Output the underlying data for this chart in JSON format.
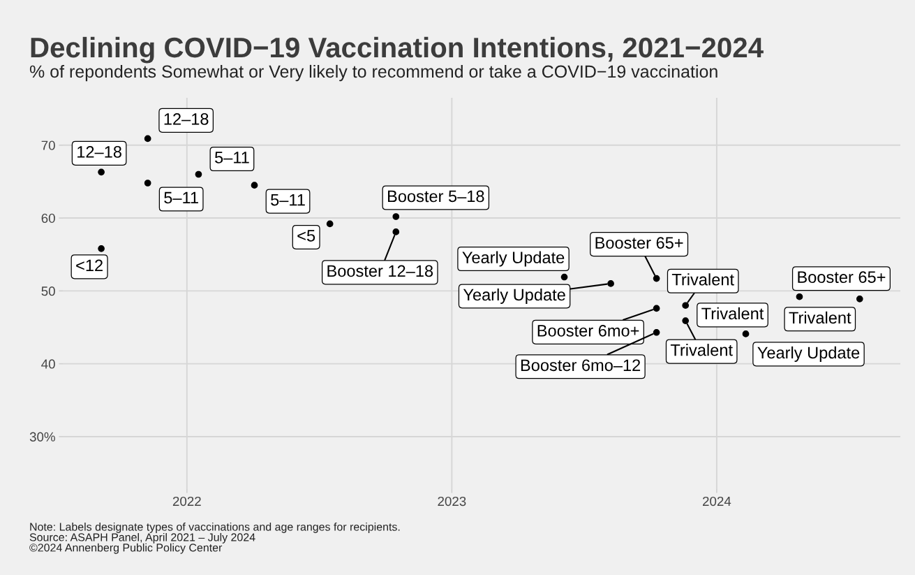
{
  "chart_data": {
    "type": "scatter",
    "title": "Declining COVID−19 Vaccination Intentions, 2021−2024",
    "subtitle": "% of repondents Somewhat or Very likely to recommend or take a COVID−19 vaccination",
    "series": [
      {
        "color": "#000000",
        "x": [
          "2021-09-05",
          "2021-09-05",
          "2021-11-08",
          "2021-11-08",
          "2022-01-17",
          "2022-04-04",
          "2022-07-17",
          "2022-10-16",
          "2022-10-16",
          "2023-06-05",
          "2023-08-08",
          "2023-10-10",
          "2023-10-10",
          "2023-10-10",
          "2023-11-19",
          "2023-11-19",
          "2024-02-10",
          "2024-04-24",
          "2024-07-16"
        ],
        "values": [
          66.3,
          55.8,
          70.9,
          64.8,
          66.0,
          64.5,
          59.2,
          60.2,
          58.1,
          51.9,
          51.0,
          51.7,
          47.6,
          44.3,
          48.0,
          45.9,
          44.1,
          49.2,
          48.9
        ]
      }
    ],
    "marker": "circle",
    "xlim": [
      "2021-07-14",
      "2024-09-10"
    ],
    "xticks": [
      {
        "value": "2022",
        "label": "2022"
      },
      {
        "value": "2023",
        "label": "2023"
      },
      {
        "value": "2024",
        "label": "2024"
      }
    ],
    "ylim": [
      22.8,
      76.5
    ],
    "yticks": [
      {
        "value": 30,
        "label": "30%"
      },
      40,
      50,
      60,
      70
    ],
    "grid": true,
    "annotations": [
      {
        "text": "12–18",
        "x": "2021-09-05",
        "y": 66.3
      },
      {
        "text": "<12",
        "x": "2021-09-05",
        "y": 55.8
      },
      {
        "text": "12–18",
        "x": "2021-11-08",
        "y": 70.9
      },
      {
        "text": "5–11",
        "x": "2021-11-08",
        "y": 64.8
      },
      {
        "text": "5–11",
        "x": "2022-01-17",
        "y": 66.0
      },
      {
        "text": "5–11",
        "x": "2022-04-04",
        "y": 64.5
      },
      {
        "text": "<5",
        "x": "2022-07-17",
        "y": 59.2
      },
      {
        "text": "Booster 5–18",
        "x": "2022-10-16",
        "y": 60.2
      },
      {
        "text": "Booster 12–18",
        "x": "2022-10-16",
        "y": 58.1
      },
      {
        "text": "Yearly Update",
        "x": "2023-06-05",
        "y": 51.9
      },
      {
        "text": "Yearly Update",
        "x": "2023-08-08",
        "y": 51.0
      },
      {
        "text": "Booster 65+",
        "x": "2023-10-10",
        "y": 51.7
      },
      {
        "text": "Booster 6mo+",
        "x": "2023-10-10",
        "y": 47.6
      },
      {
        "text": "Booster 6mo–12",
        "x": "2023-10-10",
        "y": 44.3
      },
      {
        "text": "Trivalent",
        "x": "2023-11-19",
        "y": 48.0
      },
      {
        "text": "Trivalent",
        "x": "2023-11-19",
        "y": 45.9
      },
      {
        "text": "Trivalent",
        "x": "2024-02-10",
        "y": 44.1
      },
      {
        "text": "Yearly Update",
        "x": "2024-02-10",
        "y": 44.1
      },
      {
        "text": "Booster 65+",
        "x": "2024-04-24",
        "y": 49.2
      },
      {
        "text": "Trivalent",
        "x": "2024-07-16",
        "y": 48.9
      },
      "Note: Labels designate types of vaccinations and age ranges for recipients.\nSource: ASAPH Panel, April 2021 – July 2024\n©2024 Annenberg Public Policy Center"
    ]
  }
}
